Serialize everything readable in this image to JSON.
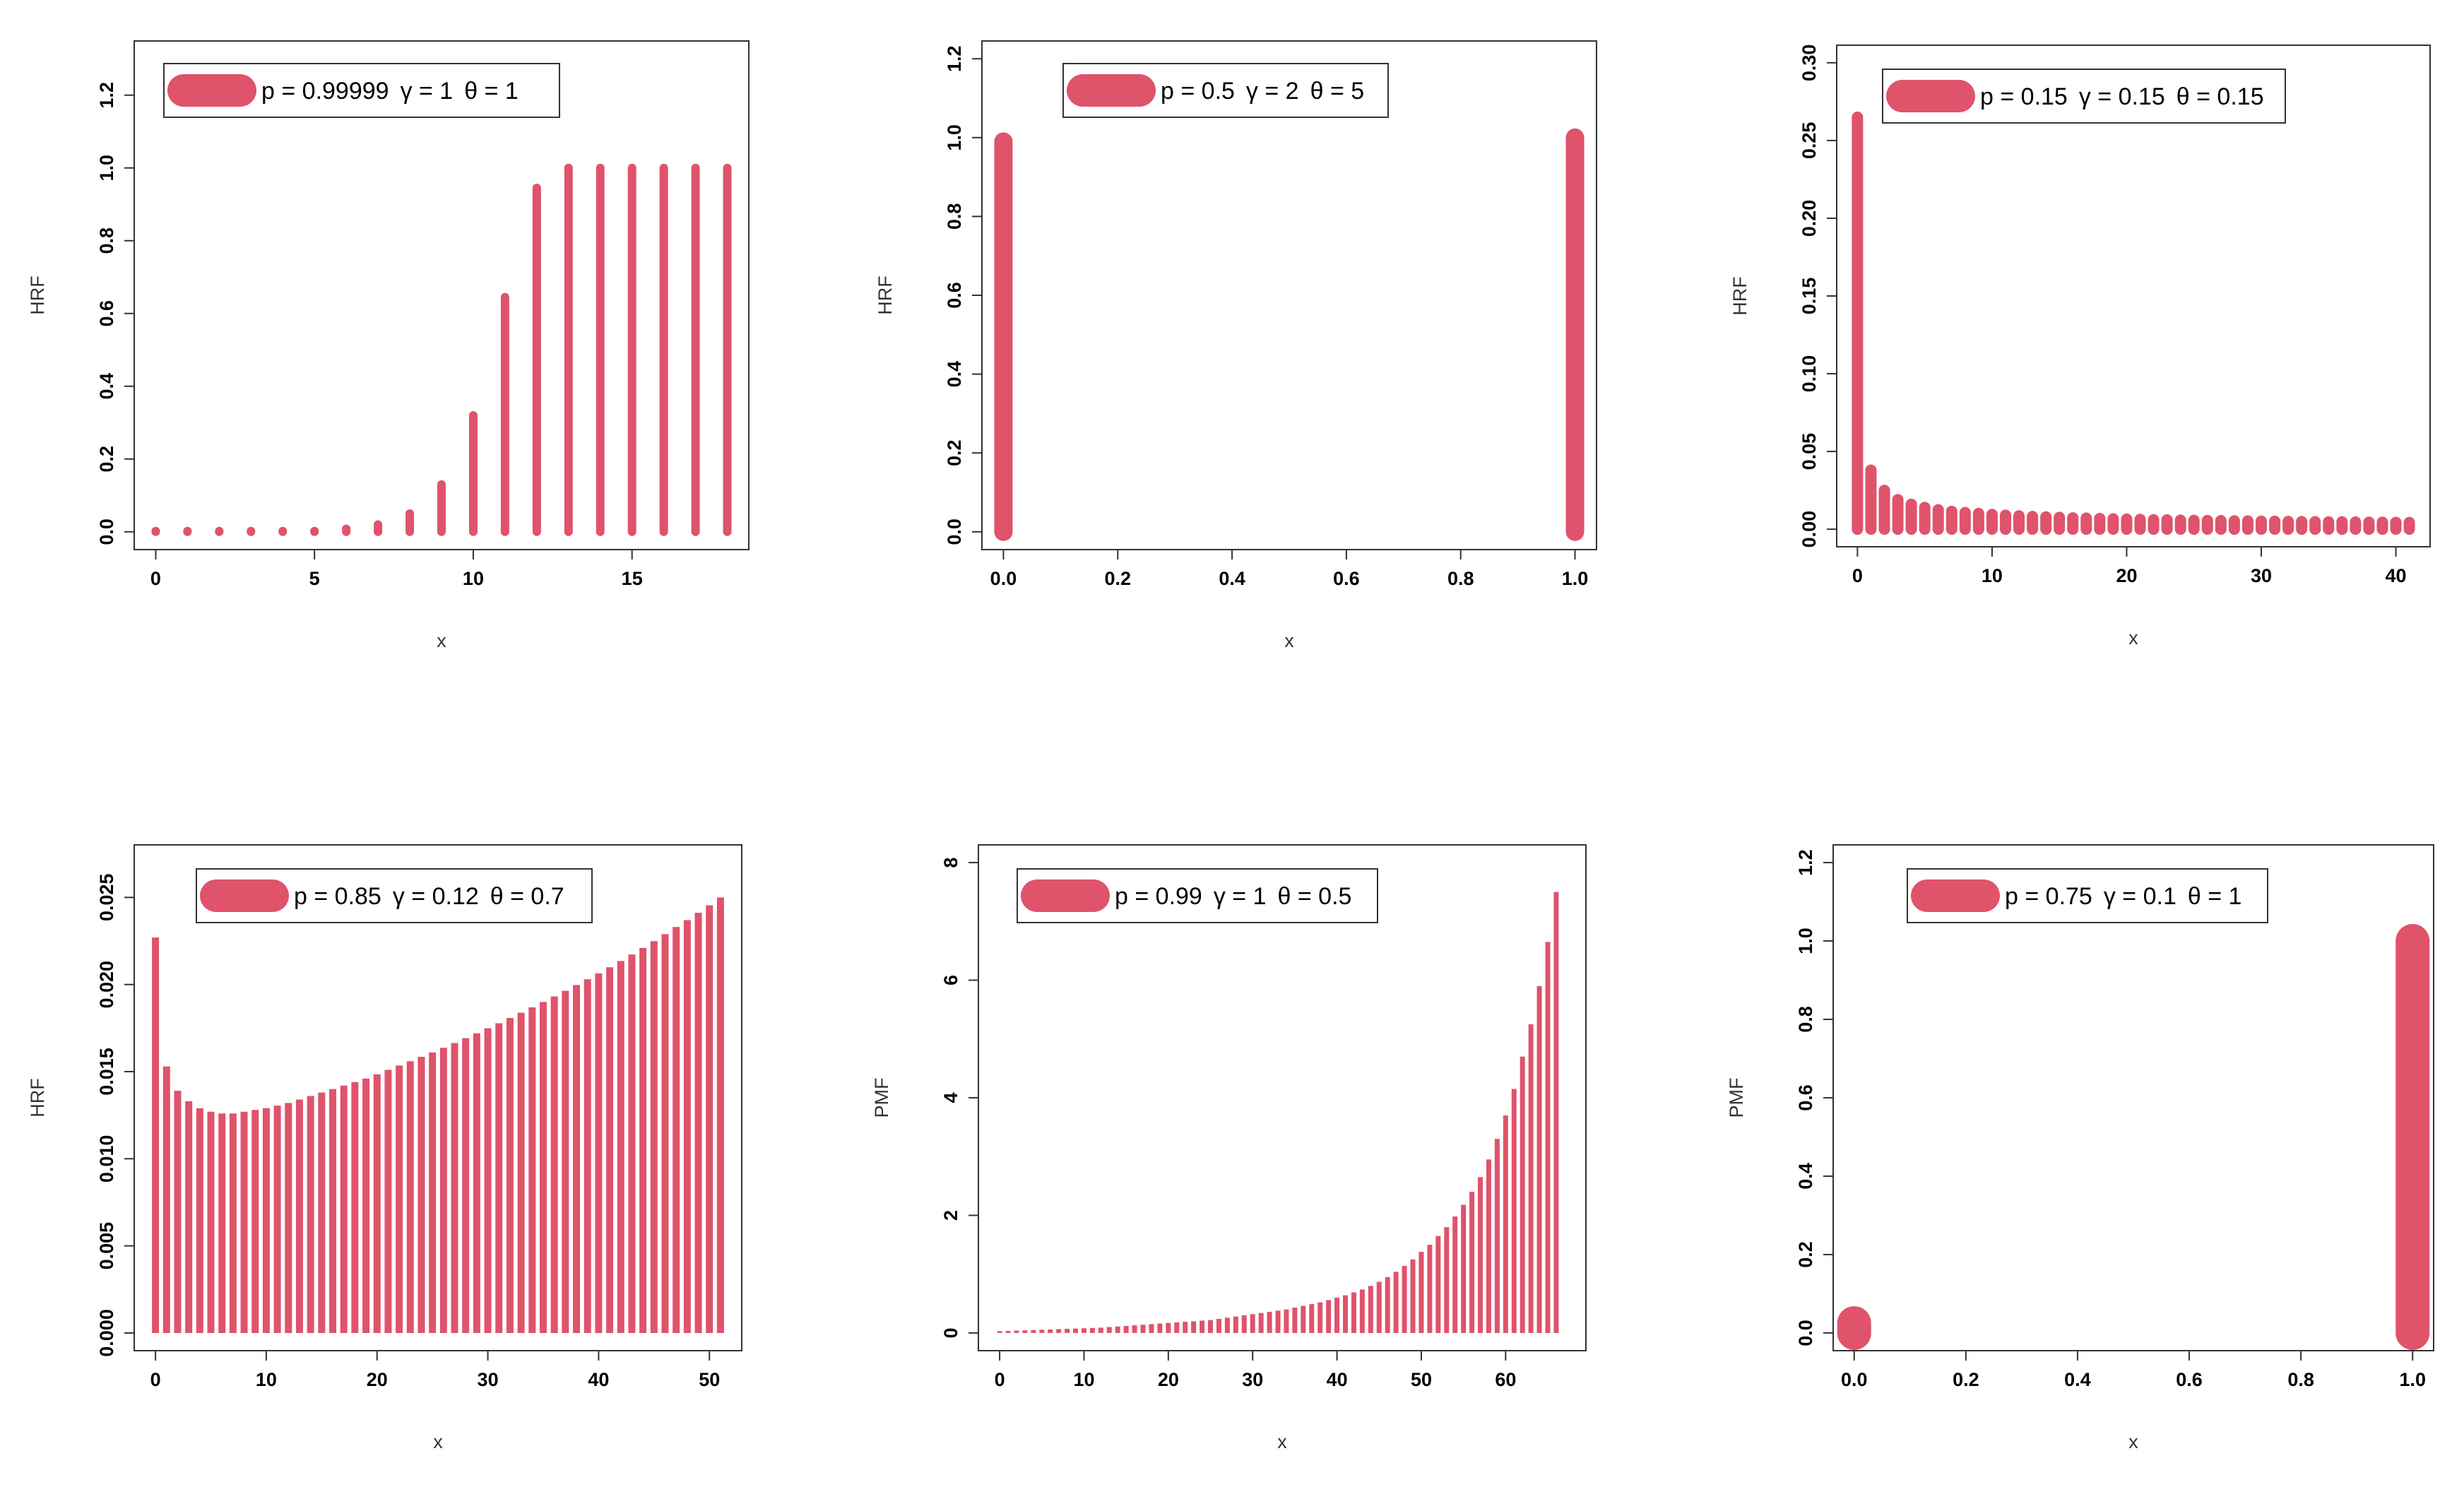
{
  "figure": {
    "description_color": "#df536b"
  },
  "chart_data": [
    {
      "type": "bar",
      "id": "hrf-a",
      "xlabel": "x",
      "ylabel": "HRF",
      "xlim": [
        0,
        18
      ],
      "ylim": [
        0,
        1.3
      ],
      "xticks": [
        0,
        5,
        10,
        15
      ],
      "yticks": [
        0.0,
        0.2,
        0.4,
        0.6,
        0.8,
        1.0,
        1.2
      ],
      "xtick_labels": [
        "0",
        "5",
        "10",
        "15"
      ],
      "ytick_labels": [
        "0.0",
        "0.2",
        "0.4",
        "0.6",
        "0.8",
        "1.0",
        "1.2"
      ],
      "legend": {
        "p": "p = 0.99999",
        "g": "γ = 1",
        "t": "θ = 1",
        "position": "top-left"
      },
      "x": [
        0,
        1,
        2,
        3,
        4,
        5,
        6,
        7,
        8,
        9,
        10,
        11,
        12,
        13,
        14,
        15,
        16,
        17,
        18
      ],
      "values": [
        0.0,
        0.0,
        0.0,
        0.0,
        0.0,
        0.001,
        0.008,
        0.02,
        0.05,
        0.13,
        0.32,
        0.645,
        0.945,
        1.0,
        1.0,
        1.0,
        1.0,
        1.0,
        1.0
      ],
      "color": "#df536b"
    },
    {
      "type": "bar",
      "id": "hrf-b",
      "xlabel": "x",
      "ylabel": "HRF",
      "xlim": [
        0,
        1
      ],
      "ylim": [
        0,
        1.2
      ],
      "xticks": [
        0.0,
        0.2,
        0.4,
        0.6,
        0.8,
        1.0
      ],
      "yticks": [
        0.0,
        0.2,
        0.4,
        0.6,
        0.8,
        1.0,
        1.2
      ],
      "xtick_labels": [
        "0.0",
        "0.2",
        "0.4",
        "0.6",
        "0.8",
        "1.0"
      ],
      "ytick_labels": [
        "0.0",
        "0.2",
        "0.4",
        "0.6",
        "0.8",
        "1.0",
        "1.2"
      ],
      "legend": {
        "p": "p = 0.5",
        "g": "γ = 2",
        "t": "θ = 5",
        "position": "top-left"
      },
      "x": [
        0,
        1
      ],
      "values": [
        0.99,
        1.0
      ],
      "color": "#df536b"
    },
    {
      "type": "bar",
      "id": "hrf-c",
      "xlabel": "x",
      "ylabel": "HRF",
      "xlim": [
        0,
        41
      ],
      "ylim": [
        0,
        0.3
      ],
      "xticks": [
        0,
        10,
        20,
        30,
        40
      ],
      "yticks": [
        0.0,
        0.05,
        0.1,
        0.15,
        0.2,
        0.25,
        0.3
      ],
      "xtick_labels": [
        "0",
        "10",
        "20",
        "30",
        "40"
      ],
      "ytick_labels": [
        "0.00",
        "0.05",
        "0.10",
        "0.15",
        "0.20",
        "0.25",
        "0.30"
      ],
      "legend": {
        "p": "p = 0.15",
        "g": "γ = 0.15",
        "t": "θ = 0.15",
        "position": "top-left"
      },
      "x": [
        0,
        1,
        2,
        3,
        4,
        5,
        6,
        7,
        8,
        9,
        10,
        11,
        12,
        13,
        14,
        15,
        16,
        17,
        18,
        19,
        20,
        21,
        22,
        23,
        24,
        25,
        26,
        27,
        28,
        29,
        30,
        31,
        32,
        33,
        34,
        35,
        36,
        37,
        38,
        39,
        40,
        41
      ],
      "values": [
        0.265,
        0.038,
        0.025,
        0.019,
        0.016,
        0.014,
        0.0125,
        0.0115,
        0.0107,
        0.0101,
        0.0095,
        0.009,
        0.0086,
        0.0082,
        0.0079,
        0.0076,
        0.0073,
        0.0071,
        0.0069,
        0.0067,
        0.0065,
        0.0063,
        0.0061,
        0.006,
        0.0058,
        0.0057,
        0.0056,
        0.0055,
        0.0054,
        0.0053,
        0.0052,
        0.0051,
        0.005,
        0.0049,
        0.0048,
        0.0047,
        0.0047,
        0.0046,
        0.0045,
        0.0045,
        0.0044,
        0.0043
      ],
      "color": "#df536b"
    },
    {
      "type": "bar",
      "id": "hrf-d",
      "xlabel": "x",
      "ylabel": "HRF",
      "xlim": [
        0,
        51
      ],
      "ylim": [
        0,
        0.027
      ],
      "xticks": [
        0,
        10,
        20,
        30,
        40,
        50
      ],
      "yticks": [
        0.0,
        0.005,
        0.01,
        0.015,
        0.02,
        0.025
      ],
      "xtick_labels": [
        "0",
        "10",
        "20",
        "30",
        "40",
        "50"
      ],
      "ytick_labels": [
        "0.000",
        "0.005",
        "0.010",
        "0.015",
        "0.020",
        "0.025"
      ],
      "legend": {
        "p": "p = 0.85",
        "g": "γ = 0.12",
        "t": "θ = 0.7",
        "position": "top-left"
      },
      "x": [
        0,
        1,
        2,
        3,
        4,
        5,
        6,
        7,
        8,
        9,
        10,
        11,
        12,
        13,
        14,
        15,
        16,
        17,
        18,
        19,
        20,
        21,
        22,
        23,
        24,
        25,
        26,
        27,
        28,
        29,
        30,
        31,
        32,
        33,
        34,
        35,
        36,
        37,
        38,
        39,
        40,
        41,
        42,
        43,
        44,
        45,
        46,
        47,
        48,
        49,
        50,
        51
      ],
      "values": [
        0.0227,
        0.0153,
        0.0139,
        0.0133,
        0.0129,
        0.0127,
        0.0126,
        0.0126,
        0.0127,
        0.0128,
        0.0129,
        0.01305,
        0.0132,
        0.0134,
        0.0136,
        0.0138,
        0.014,
        0.0142,
        0.0144,
        0.0146,
        0.01485,
        0.0151,
        0.01535,
        0.0156,
        0.01585,
        0.0161,
        0.01637,
        0.01664,
        0.01692,
        0.0172,
        0.01749,
        0.01778,
        0.01808,
        0.01838,
        0.01869,
        0.019,
        0.01932,
        0.01964,
        0.01997,
        0.0203,
        0.02064,
        0.02099,
        0.02135,
        0.02172,
        0.0221,
        0.02249,
        0.02289,
        0.0233,
        0.0237,
        0.02412,
        0.02455,
        0.025
      ],
      "color": "#df536b"
    },
    {
      "type": "bar",
      "id": "pmf-e",
      "xlabel": "x",
      "ylabel": "PMF",
      "xlim": [
        0,
        67
      ],
      "ylim": [
        0,
        8
      ],
      "xticks": [
        0,
        10,
        20,
        30,
        40,
        50,
        60
      ],
      "yticks": [
        0,
        2,
        4,
        6,
        8
      ],
      "xtick_labels": [
        "0",
        "10",
        "20",
        "30",
        "40",
        "50",
        "60"
      ],
      "ytick_labels": [
        "0",
        "2",
        "4",
        "6",
        "8"
      ],
      "legend": {
        "p": "p = 0.99",
        "g": "γ = 1",
        "t": "θ = 0.5",
        "position": "top-left"
      },
      "x": [
        0,
        1,
        2,
        3,
        4,
        5,
        6,
        7,
        8,
        9,
        10,
        11,
        12,
        13,
        14,
        15,
        16,
        17,
        18,
        19,
        20,
        21,
        22,
        23,
        24,
        25,
        26,
        27,
        28,
        29,
        30,
        31,
        32,
        33,
        34,
        35,
        36,
        37,
        38,
        39,
        40,
        41,
        42,
        43,
        44,
        45,
        46,
        47,
        48,
        49,
        50,
        51,
        52,
        53,
        54,
        55,
        56,
        57,
        58,
        59,
        60,
        61,
        62,
        63,
        64,
        65,
        66
      ],
      "values": [
        0.03,
        0.035,
        0.04,
        0.045,
        0.05,
        0.055,
        0.06,
        0.065,
        0.07,
        0.075,
        0.08,
        0.085,
        0.09,
        0.1,
        0.11,
        0.12,
        0.13,
        0.14,
        0.15,
        0.16,
        0.17,
        0.18,
        0.19,
        0.2,
        0.21,
        0.22,
        0.24,
        0.26,
        0.28,
        0.3,
        0.32,
        0.34,
        0.36,
        0.38,
        0.4,
        0.43,
        0.46,
        0.49,
        0.52,
        0.56,
        0.6,
        0.64,
        0.69,
        0.74,
        0.8,
        0.87,
        0.95,
        1.04,
        1.14,
        1.25,
        1.38,
        1.5,
        1.65,
        1.8,
        1.98,
        2.18,
        2.4,
        2.65,
        2.95,
        3.3,
        3.7,
        4.15,
        4.7,
        5.25,
        5.9,
        6.65,
        7.5
      ],
      "color": "#df536b"
    },
    {
      "type": "bar",
      "id": "pmf-f",
      "xlabel": "x",
      "ylabel": "PMF",
      "xlim": [
        0,
        1
      ],
      "ylim": [
        0,
        1.2
      ],
      "xticks": [
        0.0,
        0.2,
        0.4,
        0.6,
        0.8,
        1.0
      ],
      "yticks": [
        0.0,
        0.2,
        0.4,
        0.6,
        0.8,
        1.0,
        1.2
      ],
      "xtick_labels": [
        "0.0",
        "0.2",
        "0.4",
        "0.6",
        "0.8",
        "1.0"
      ],
      "ytick_labels": [
        "0.0",
        "0.2",
        "0.4",
        "0.6",
        "0.8",
        "1.0",
        "1.2"
      ],
      "legend": {
        "p": "p = 0.75",
        "g": "γ = 0.1",
        "t": "θ = 1",
        "position": "top-left"
      },
      "x": [
        0,
        1
      ],
      "values": [
        0.025,
        1.0
      ],
      "color": "#df536b"
    }
  ]
}
